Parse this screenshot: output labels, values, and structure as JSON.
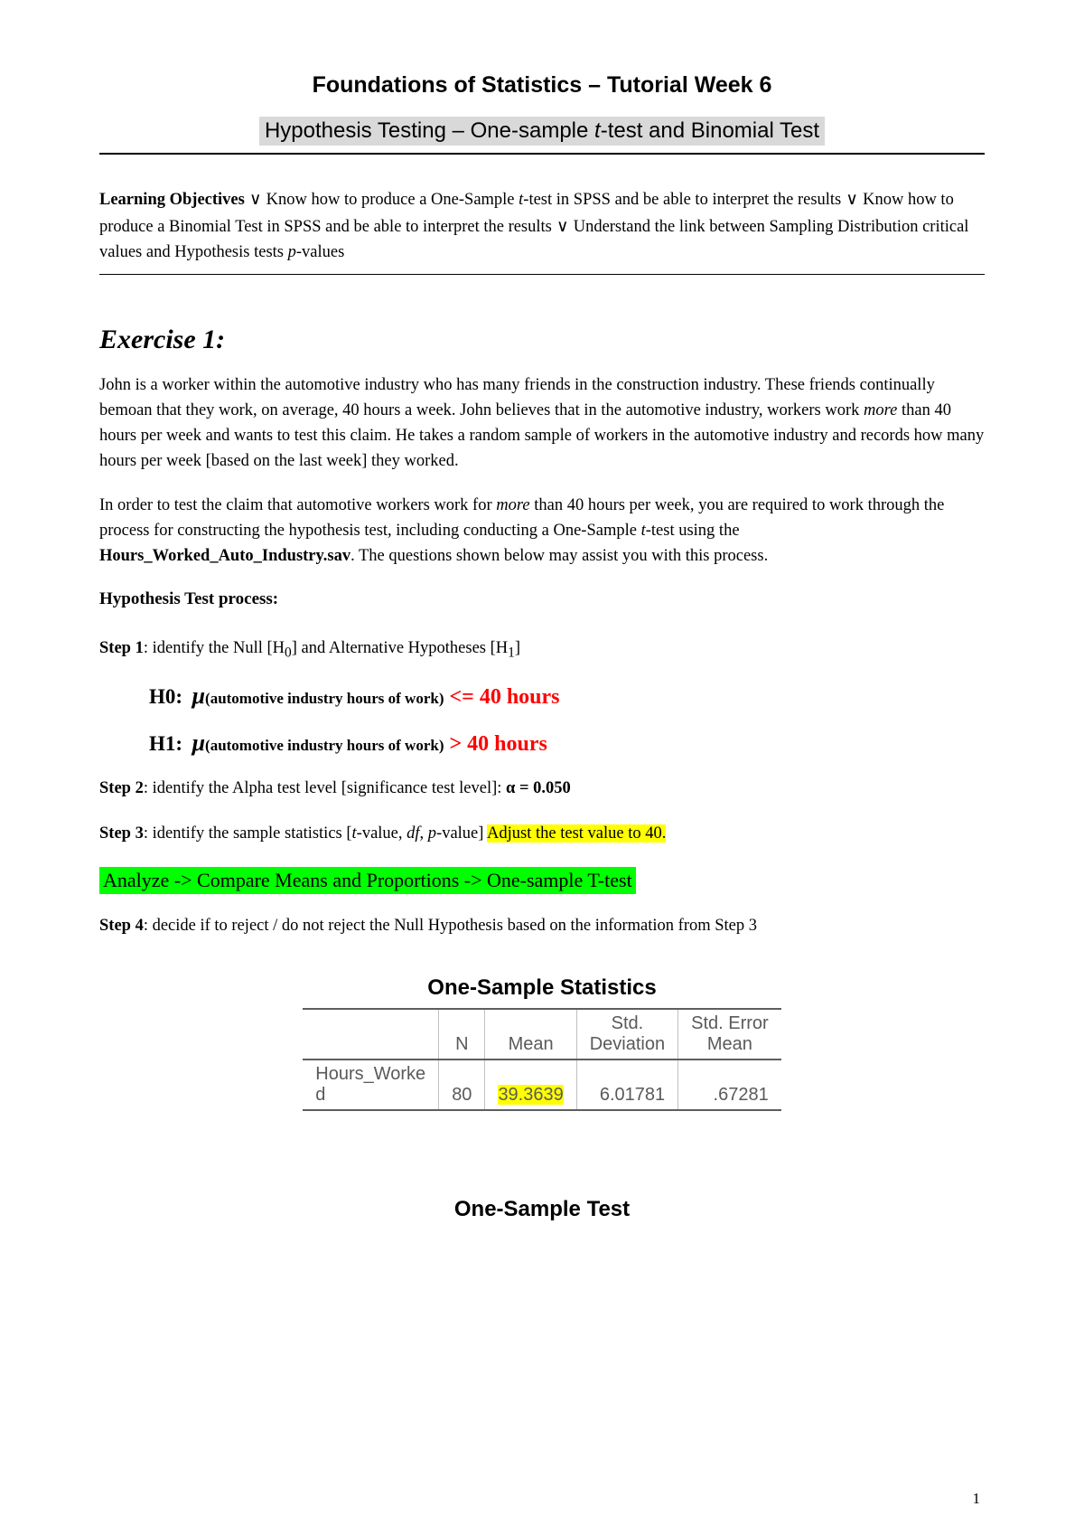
{
  "header": {
    "title": "Foundations of Statistics – Tutorial Week 6",
    "subtitle_prefix": "Hypothesis Testing – One-sample ",
    "subtitle_italic": "t",
    "subtitle_suffix": "-test and Binomial Test"
  },
  "objectives": {
    "label": "Learning Objectives",
    "check": " ∨ ",
    "item1_a": "Know how to produce a One-Sample ",
    "item1_t": "t",
    "item1_b": "-test in SPSS and be able to interpret the results",
    "item2": "Know how to produce a Binomial Test in SPSS and be able to interpret the results",
    "item3_a": "Understand the link between Sampling Distribution critical values and Hypothesis tests ",
    "item3_p": "p",
    "item3_b": "-values"
  },
  "exercise": {
    "heading": "Exercise 1:",
    "para1": "John is a worker within the automotive industry who has many friends in the construction industry.  These friends continually bemoan that they work, on average, 40 hours a week.  John believes that in the automotive industry, workers work ",
    "para1_more": "more",
    "para1_b": " than 40 hours per week and wants to test this claim.   He takes a random sample of workers in the automotive industry and records how many hours per week [based on the last week] they worked.",
    "para2_a": "In order to test the claim that automotive workers work for ",
    "para2_more": "more",
    "para2_b": " than 40 hours per week, you are required to work through the process for constructing the hypothesis test, including conducting a One-Sample ",
    "para2_t": "t",
    "para2_c": "-test using the ",
    "para2_file": "Hours_Worked_Auto_Industry.sav",
    "para2_d": ".   The questions shown below may assist you with this process."
  },
  "process": {
    "label": "Hypothesis Test process:",
    "step1_label": "Step 1",
    "step1_text_a": ": identify the Null [H",
    "step1_sub0": "0",
    "step1_text_b": "] and Alternative Hypotheses [H",
    "step1_sub1": "1",
    "step1_text_c": "]",
    "h0_prefix": "H0:",
    "mu": "μ",
    "hyp_sub": "(automotive industry hours of work)",
    "h0_val": "  <= 40 hours",
    "h1_prefix": "H1:",
    "h1_val": "   > 40 hours",
    "step2_label": "Step 2",
    "step2_text": ": identify the Alpha test level [significance test level]:  ",
    "step2_alpha": "α = 0.050",
    "step3_label": "Step 3",
    "step3_text_a": ": identify the sample statistics [",
    "step3_t": "t",
    "step3_text_b": "-value, ",
    "step3_df": "df",
    "step3_text_c": ", ",
    "step3_p": "p",
    "step3_text_d": "-value] ",
    "step3_highlight": "Adjust the test value to 40.",
    "green_path": "Analyze -> Compare Means and Proportions -> One-sample T-test",
    "step4_label": "Step 4",
    "step4_text": ": decide if to reject / do not reject the Null Hypothesis based on the information from Step 3"
  },
  "stats_table": {
    "title": "One-Sample Statistics",
    "headers": {
      "c1": "",
      "c2": "N",
      "c3": "Mean",
      "c4_a": "Std.",
      "c4_b": "Deviation",
      "c5_a": "Std. Error",
      "c5_b": "Mean"
    },
    "row": {
      "label_a": "Hours_Worke",
      "label_b": "d",
      "n": "80",
      "mean": "39.3639",
      "sd": "6.01781",
      "se": ".67281"
    }
  },
  "test_table": {
    "title": "One-Sample Test"
  },
  "page_number": "1"
}
